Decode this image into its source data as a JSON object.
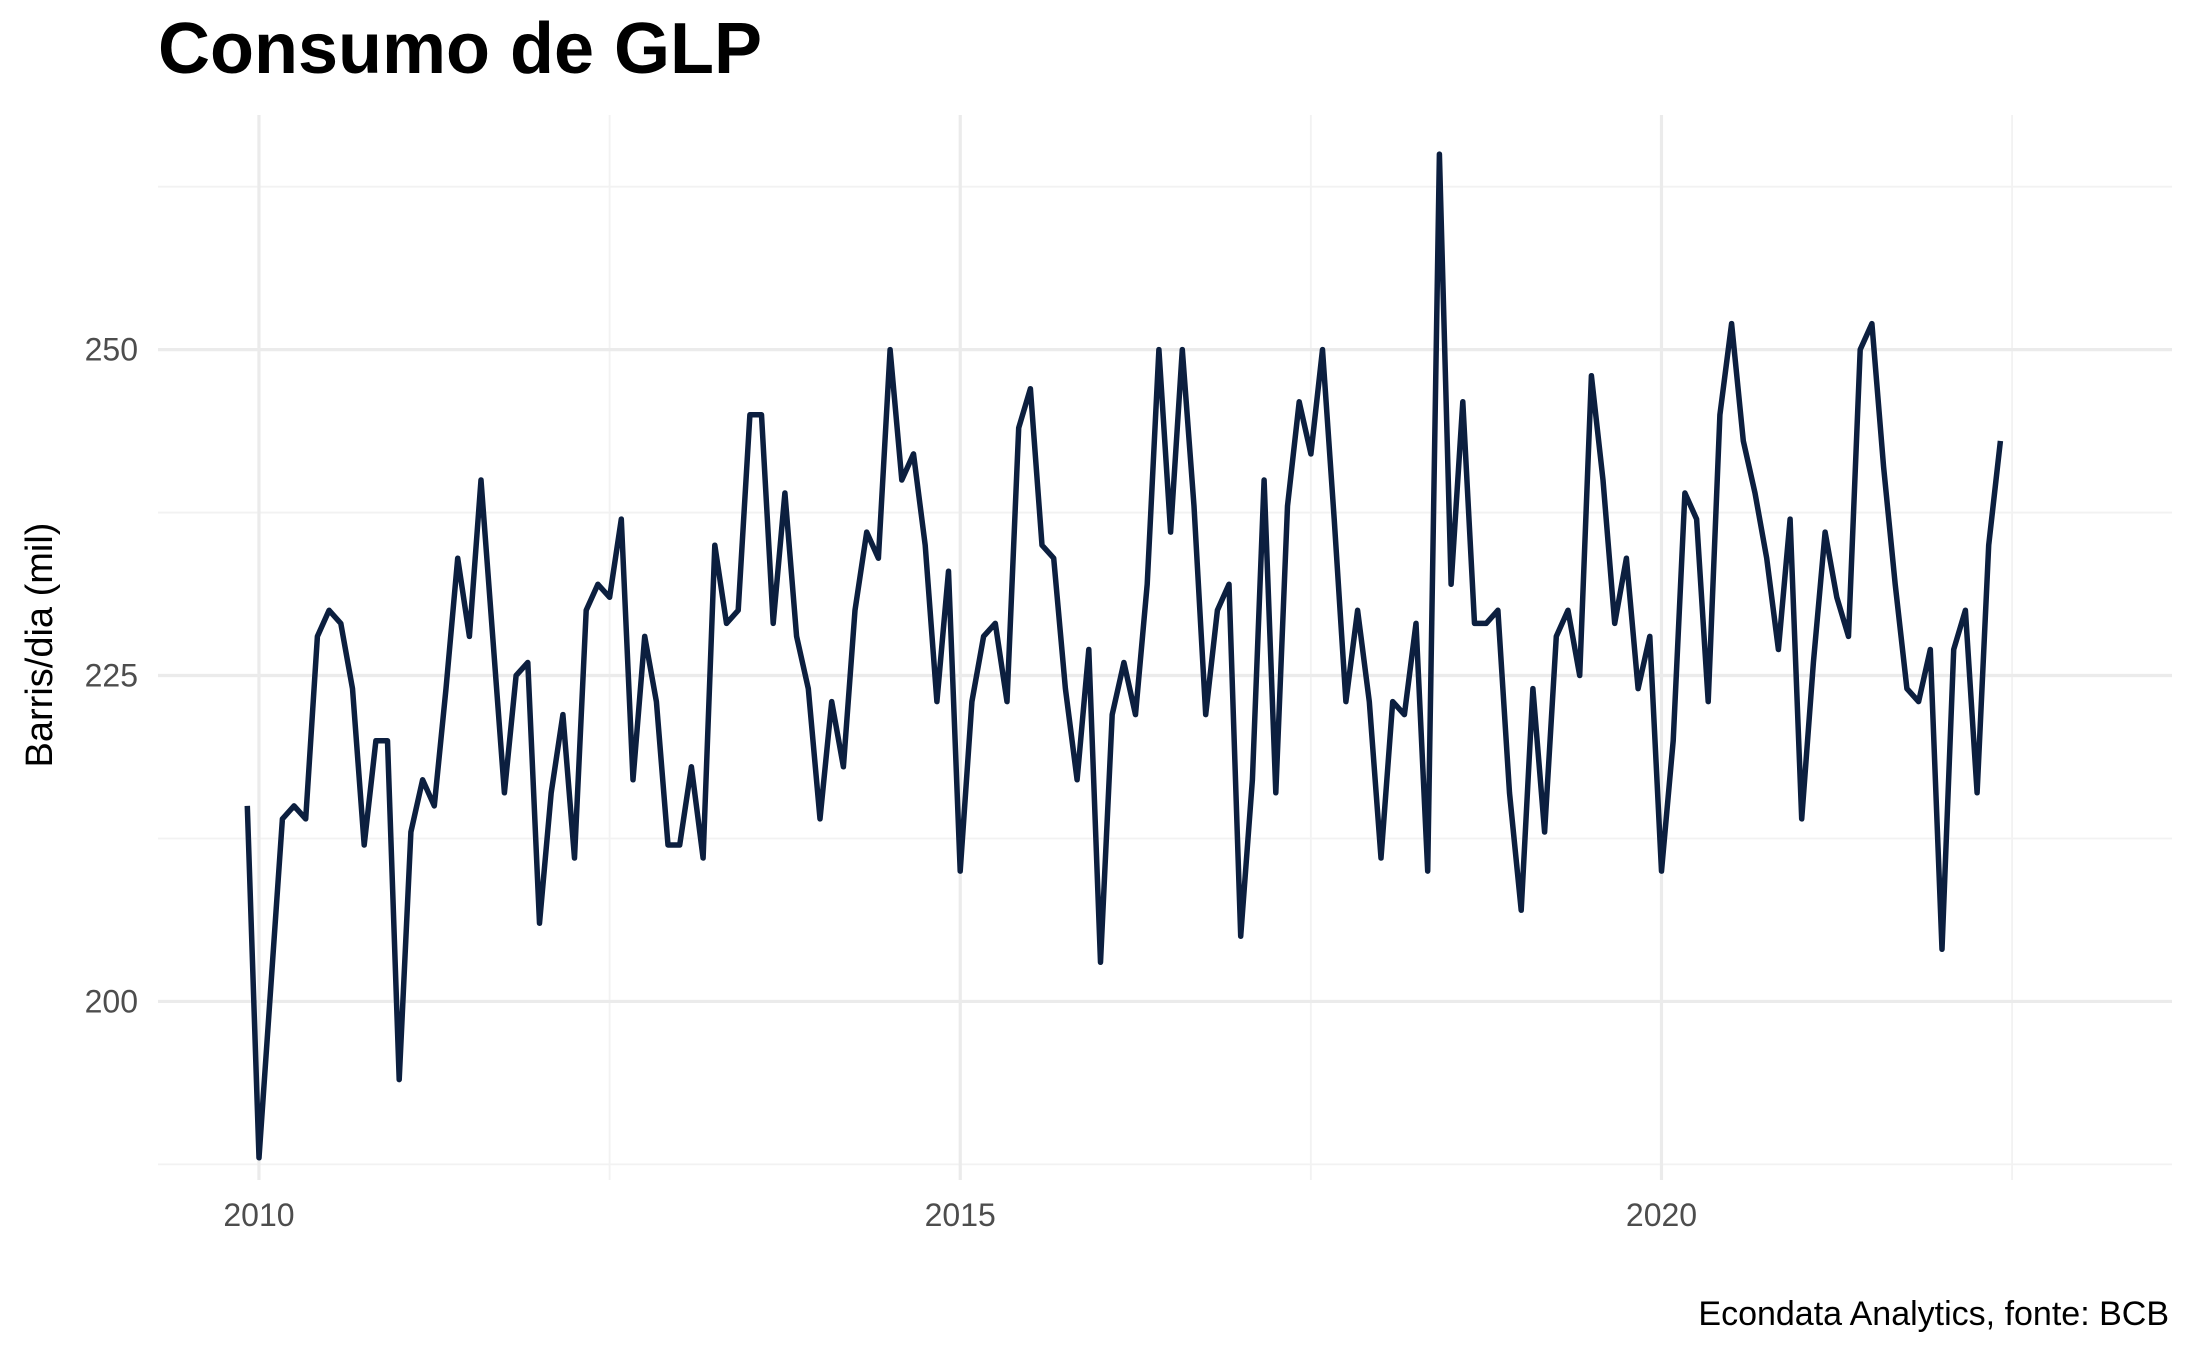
{
  "chart_data": {
    "type": "line",
    "title": "Consumo de GLP",
    "xlabel": "",
    "ylabel": "Barris/dia (mil)",
    "caption": "Econdata Analytics, fonte: BCB",
    "x_ticks": [
      2010,
      2015,
      2020
    ],
    "y_ticks": [
      200,
      225,
      250
    ],
    "xlim": [
      2009.28,
      2023.64
    ],
    "ylim": [
      186.3,
      268.0
    ],
    "grid": true,
    "line_color": "#0c1f3f",
    "series": [
      {
        "start": "2009-12",
        "frequency": "monthly",
        "values": [
          215,
          188,
          201,
          214,
          215,
          214,
          228,
          230,
          229,
          224,
          212,
          220,
          220,
          194,
          213,
          217,
          215,
          224,
          234,
          228,
          240,
          228,
          216,
          225,
          226,
          206,
          216,
          222,
          211,
          230,
          232,
          231,
          237,
          217,
          228,
          223,
          212,
          212,
          218,
          211,
          235,
          229,
          230,
          245,
          245,
          229,
          239,
          228,
          224,
          214,
          223,
          218,
          230,
          236,
          234,
          250,
          240,
          242,
          235,
          223,
          233,
          210,
          223,
          228,
          229,
          223,
          244,
          247,
          235,
          234,
          224,
          217,
          227,
          203,
          222,
          226,
          222,
          232,
          250,
          236,
          250,
          238,
          222,
          230,
          232,
          205,
          217,
          240,
          216,
          238,
          246,
          242,
          250,
          237,
          223,
          230,
          223,
          211,
          223,
          222,
          229,
          210,
          265,
          232,
          246,
          229,
          229,
          230,
          216,
          207,
          224,
          213,
          228,
          230,
          225,
          248,
          240,
          229,
          234,
          224,
          228,
          210,
          220,
          239,
          237,
          223,
          245,
          252,
          243,
          239,
          234,
          227,
          237,
          214,
          226,
          236,
          231,
          228,
          250,
          252,
          241,
          232,
          224,
          223,
          227,
          204,
          227,
          230,
          216,
          235,
          243
        ]
      }
    ]
  }
}
